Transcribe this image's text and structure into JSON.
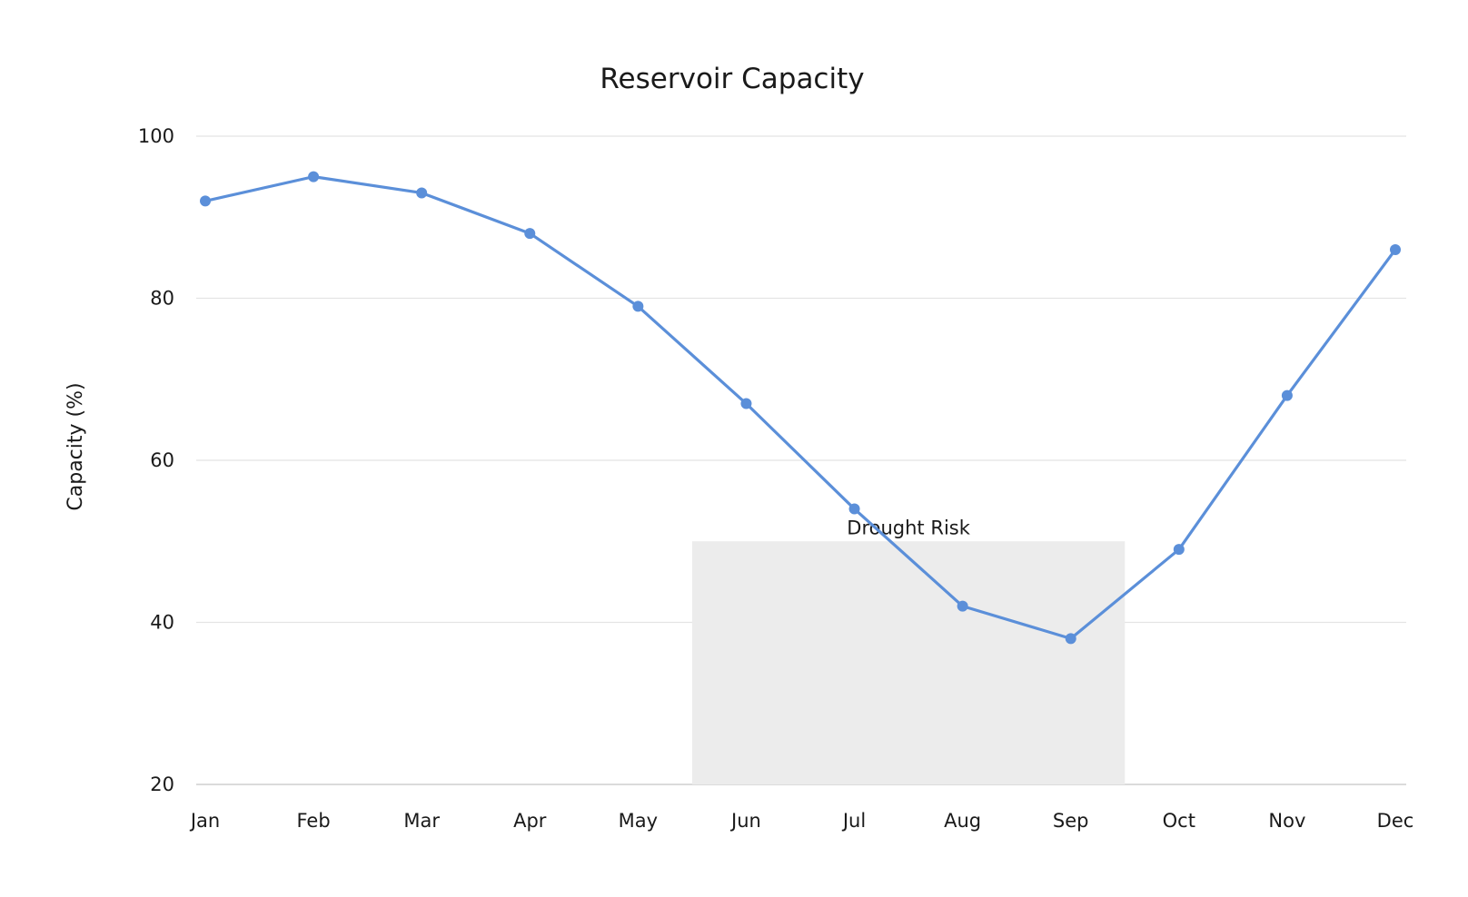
{
  "chart_data": {
    "type": "line",
    "title": "Reservoir Capacity",
    "xlabel": "",
    "ylabel": "Capacity (%)",
    "categories": [
      "Jan",
      "Feb",
      "Mar",
      "Apr",
      "May",
      "Jun",
      "Jul",
      "Aug",
      "Sep",
      "Oct",
      "Nov",
      "Dec"
    ],
    "series": [
      {
        "values": [
          92,
          95,
          93,
          88,
          79,
          67,
          54,
          42,
          38,
          49,
          68,
          86
        ],
        "color": "#5b8fd9"
      }
    ],
    "ylim": [
      20,
      100
    ],
    "yticks": [
      20,
      40,
      60,
      80,
      100
    ],
    "grid": true,
    "legend": "none",
    "annotations": [
      {
        "type": "band",
        "label": "Drought Risk",
        "x_from": "May",
        "x_to": "Sep",
        "x_from_offset": 0.5,
        "x_to_offset": 0.5,
        "y_from": 20,
        "y_to": 50,
        "color": "#ececec"
      }
    ]
  }
}
